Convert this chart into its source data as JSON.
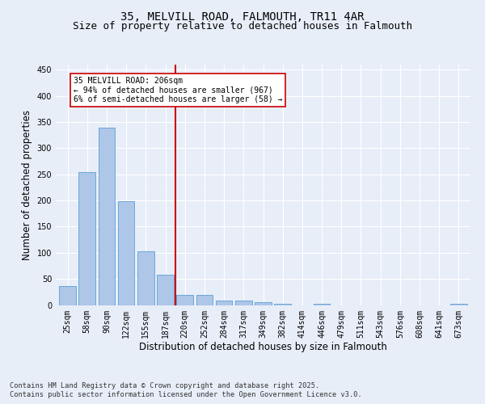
{
  "title": "35, MELVILL ROAD, FALMOUTH, TR11 4AR",
  "subtitle": "Size of property relative to detached houses in Falmouth",
  "xlabel": "Distribution of detached houses by size in Falmouth",
  "ylabel": "Number of detached properties",
  "categories": [
    "25sqm",
    "58sqm",
    "90sqm",
    "122sqm",
    "155sqm",
    "187sqm",
    "220sqm",
    "252sqm",
    "284sqm",
    "317sqm",
    "349sqm",
    "382sqm",
    "414sqm",
    "446sqm",
    "479sqm",
    "511sqm",
    "543sqm",
    "576sqm",
    "608sqm",
    "641sqm",
    "673sqm"
  ],
  "values": [
    36,
    255,
    340,
    198,
    103,
    58,
    19,
    19,
    9,
    8,
    5,
    2,
    0,
    3,
    0,
    0,
    0,
    0,
    0,
    0,
    3
  ],
  "bar_color": "#aec6e8",
  "bar_edge_color": "#5a9fd4",
  "vline_x": 5.5,
  "vline_color": "#cc0000",
  "annotation_text": "35 MELVILL ROAD: 206sqm\n← 94% of detached houses are smaller (967)\n6% of semi-detached houses are larger (58) →",
  "annotation_box_color": "#ffffff",
  "annotation_box_edge": "#cc0000",
  "ylim": [
    0,
    460
  ],
  "yticks": [
    0,
    50,
    100,
    150,
    200,
    250,
    300,
    350,
    400,
    450
  ],
  "bg_color": "#e8eef8",
  "plot_bg_color": "#e8eef8",
  "footer_line1": "Contains HM Land Registry data © Crown copyright and database right 2025.",
  "footer_line2": "Contains public sector information licensed under the Open Government Licence v3.0.",
  "title_fontsize": 10,
  "subtitle_fontsize": 9,
  "tick_fontsize": 7,
  "axis_label_fontsize": 8.5
}
